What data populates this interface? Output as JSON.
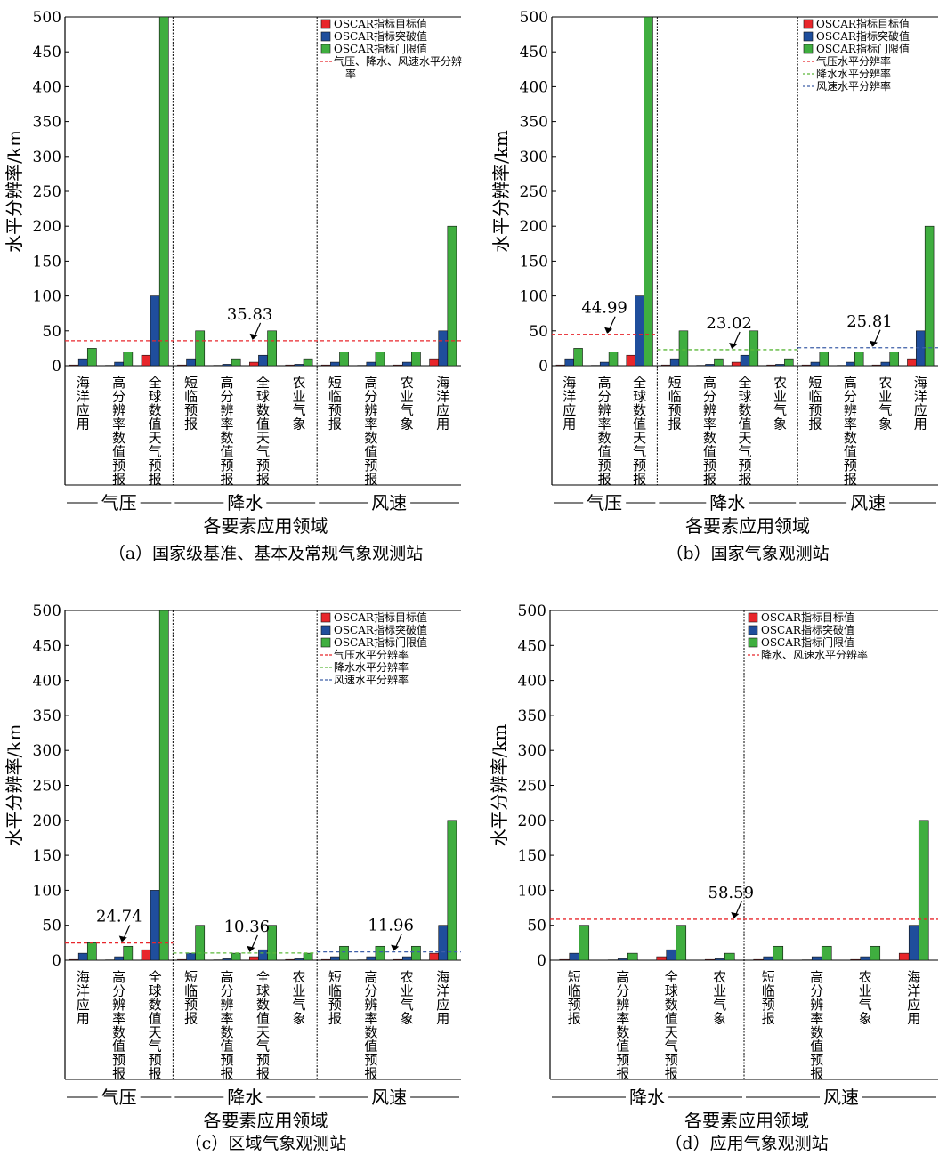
{
  "figure": {
    "legend_labels": {
      "target": "OSCAR指标目标值",
      "breakthrough": "OSCAR指标突破值",
      "threshold": "OSCAR指标门限值"
    },
    "colors": {
      "target": "#e8262b",
      "breakthrough": "#1f4e9c",
      "threshold": "#3fae3f",
      "pressure_line": "#e8262b",
      "precip_line": "#5cb83a",
      "wind_line": "#3d5fa8"
    }
  },
  "chart_data": [
    {
      "id": "a",
      "type": "bar",
      "caption": "（a）国家级基准、基本及常规气象观测站",
      "xlabel": "各要素应用领域",
      "ylabel": "水平分辨率/km",
      "ylim": [
        0,
        500
      ],
      "yticks": [
        0,
        50,
        100,
        150,
        200,
        250,
        300,
        350,
        400,
        450,
        500
      ],
      "categories": [
        "海洋应用",
        "高分辨率数值预报",
        "全球数值天气预报",
        "短临预报",
        "高分辨率数值预报",
        "全球数值天气预报",
        "农业气象",
        "短临预报",
        "高分辨率数值预报",
        "农业气象",
        "海洋应用"
      ],
      "series": [
        {
          "name": "OSCAR指标目标值",
          "values": [
            1,
            0.5,
            15,
            1,
            0.5,
            5,
            1,
            1,
            0.5,
            1,
            10
          ]
        },
        {
          "name": "OSCAR指标突破值",
          "values": [
            10,
            5,
            100,
            10,
            2,
            15,
            2,
            5,
            5,
            5,
            50
          ]
        },
        {
          "name": "OSCAR指标门限值",
          "values": [
            25,
            20,
            500,
            50,
            10,
            50,
            10,
            20,
            20,
            20,
            200
          ]
        }
      ],
      "groups": [
        {
          "name": "气压",
          "count": 3
        },
        {
          "name": "降水",
          "count": 4
        },
        {
          "name": "风速",
          "count": 4
        }
      ],
      "reference_lines": [
        {
          "name": "气压、降水、风速水平分辨率",
          "value": 35.83,
          "label": "35.83",
          "from": 0,
          "to": 11,
          "color": "#e8262b"
        }
      ]
    },
    {
      "id": "b",
      "type": "bar",
      "caption": "（b）国家气象观测站",
      "xlabel": "各要素应用领域",
      "ylabel": "水平分辨率/km",
      "ylim": [
        0,
        500
      ],
      "yticks": [
        0,
        50,
        100,
        150,
        200,
        250,
        300,
        350,
        400,
        450,
        500
      ],
      "categories": [
        "海洋应用",
        "高分辨率数值预报",
        "全球数值天气预报",
        "短临预报",
        "高分辨率数值预报",
        "全球数值天气预报",
        "农业气象",
        "短临预报",
        "高分辨率数值预报",
        "农业气象",
        "海洋应用"
      ],
      "series": [
        {
          "name": "OSCAR指标目标值",
          "values": [
            1,
            0.5,
            15,
            1,
            0.5,
            5,
            1,
            1,
            0.5,
            1,
            10
          ]
        },
        {
          "name": "OSCAR指标突破值",
          "values": [
            10,
            5,
            100,
            10,
            2,
            15,
            2,
            5,
            5,
            5,
            50
          ]
        },
        {
          "name": "OSCAR指标门限值",
          "values": [
            25,
            20,
            500,
            50,
            10,
            50,
            10,
            20,
            20,
            20,
            200
          ]
        }
      ],
      "groups": [
        {
          "name": "气压",
          "count": 3
        },
        {
          "name": "降水",
          "count": 4
        },
        {
          "name": "风速",
          "count": 4
        }
      ],
      "reference_lines": [
        {
          "name": "气压水平分辨率",
          "value": 44.99,
          "label": "44.99",
          "from": 0,
          "to": 3,
          "color": "#e8262b"
        },
        {
          "name": "降水水平分辨率",
          "value": 23.02,
          "label": "23.02",
          "from": 3,
          "to": 7,
          "color": "#5cb83a"
        },
        {
          "name": "风速水平分辨率",
          "value": 25.81,
          "label": "25.81",
          "from": 7,
          "to": 11,
          "color": "#3d5fa8"
        }
      ]
    },
    {
      "id": "c",
      "type": "bar",
      "caption": "（c）区域气象观测站",
      "xlabel": "各要素应用领域",
      "ylabel": "水平分辨率/km",
      "ylim": [
        0,
        500
      ],
      "yticks": [
        0,
        50,
        100,
        150,
        200,
        250,
        300,
        350,
        400,
        450,
        500
      ],
      "categories": [
        "海洋应用",
        "高分辨率数值预报",
        "全球数值天气预报",
        "短临预报",
        "高分辨率数值预报",
        "全球数值天气预报",
        "农业气象",
        "短临预报",
        "高分辨率数值预报",
        "农业气象",
        "海洋应用"
      ],
      "series": [
        {
          "name": "OSCAR指标目标值",
          "values": [
            1,
            0.5,
            15,
            1,
            0.5,
            5,
            1,
            1,
            0.5,
            1,
            10
          ]
        },
        {
          "name": "OSCAR指标突破值",
          "values": [
            10,
            5,
            100,
            10,
            2,
            15,
            2,
            5,
            5,
            5,
            50
          ]
        },
        {
          "name": "OSCAR指标门限值",
          "values": [
            25,
            20,
            500,
            50,
            10,
            50,
            10,
            20,
            20,
            20,
            200
          ]
        }
      ],
      "groups": [
        {
          "name": "气压",
          "count": 3
        },
        {
          "name": "降水",
          "count": 4
        },
        {
          "name": "风速",
          "count": 4
        }
      ],
      "reference_lines": [
        {
          "name": "气压水平分辨率",
          "value": 24.74,
          "label": "24.74",
          "from": 0,
          "to": 3,
          "color": "#e8262b"
        },
        {
          "name": "降水水平分辨率",
          "value": 10.36,
          "label": "10.36",
          "from": 3,
          "to": 7,
          "color": "#5cb83a"
        },
        {
          "name": "风速水平分辨率",
          "value": 11.96,
          "label": "11.96",
          "from": 7,
          "to": 11,
          "color": "#3d5fa8"
        }
      ]
    },
    {
      "id": "d",
      "type": "bar",
      "caption": "（d）应用气象观测站",
      "xlabel": "各要素应用领域",
      "ylabel": "水平分辨率/km",
      "ylim": [
        0,
        500
      ],
      "yticks": [
        0,
        50,
        100,
        150,
        200,
        250,
        300,
        350,
        400,
        450,
        500
      ],
      "categories": [
        "短临预报",
        "高分辨率数值预报",
        "全球数值天气预报",
        "农业气象",
        "短临预报",
        "高分辨率数值预报",
        "农业气象",
        "海洋应用"
      ],
      "series": [
        {
          "name": "OSCAR指标目标值",
          "values": [
            1,
            0.5,
            5,
            1,
            1,
            0.5,
            1,
            10
          ]
        },
        {
          "name": "OSCAR指标突破值",
          "values": [
            10,
            2,
            15,
            2,
            5,
            5,
            5,
            50
          ]
        },
        {
          "name": "OSCAR指标门限值",
          "values": [
            50,
            10,
            50,
            10,
            20,
            20,
            20,
            200
          ]
        }
      ],
      "groups": [
        {
          "name": "降水",
          "count": 4
        },
        {
          "name": "风速",
          "count": 4
        }
      ],
      "reference_lines": [
        {
          "name": "降水、风速水平分辨率",
          "value": 58.59,
          "label": "58.59",
          "from": 0,
          "to": 8,
          "color": "#e8262b"
        }
      ]
    }
  ]
}
